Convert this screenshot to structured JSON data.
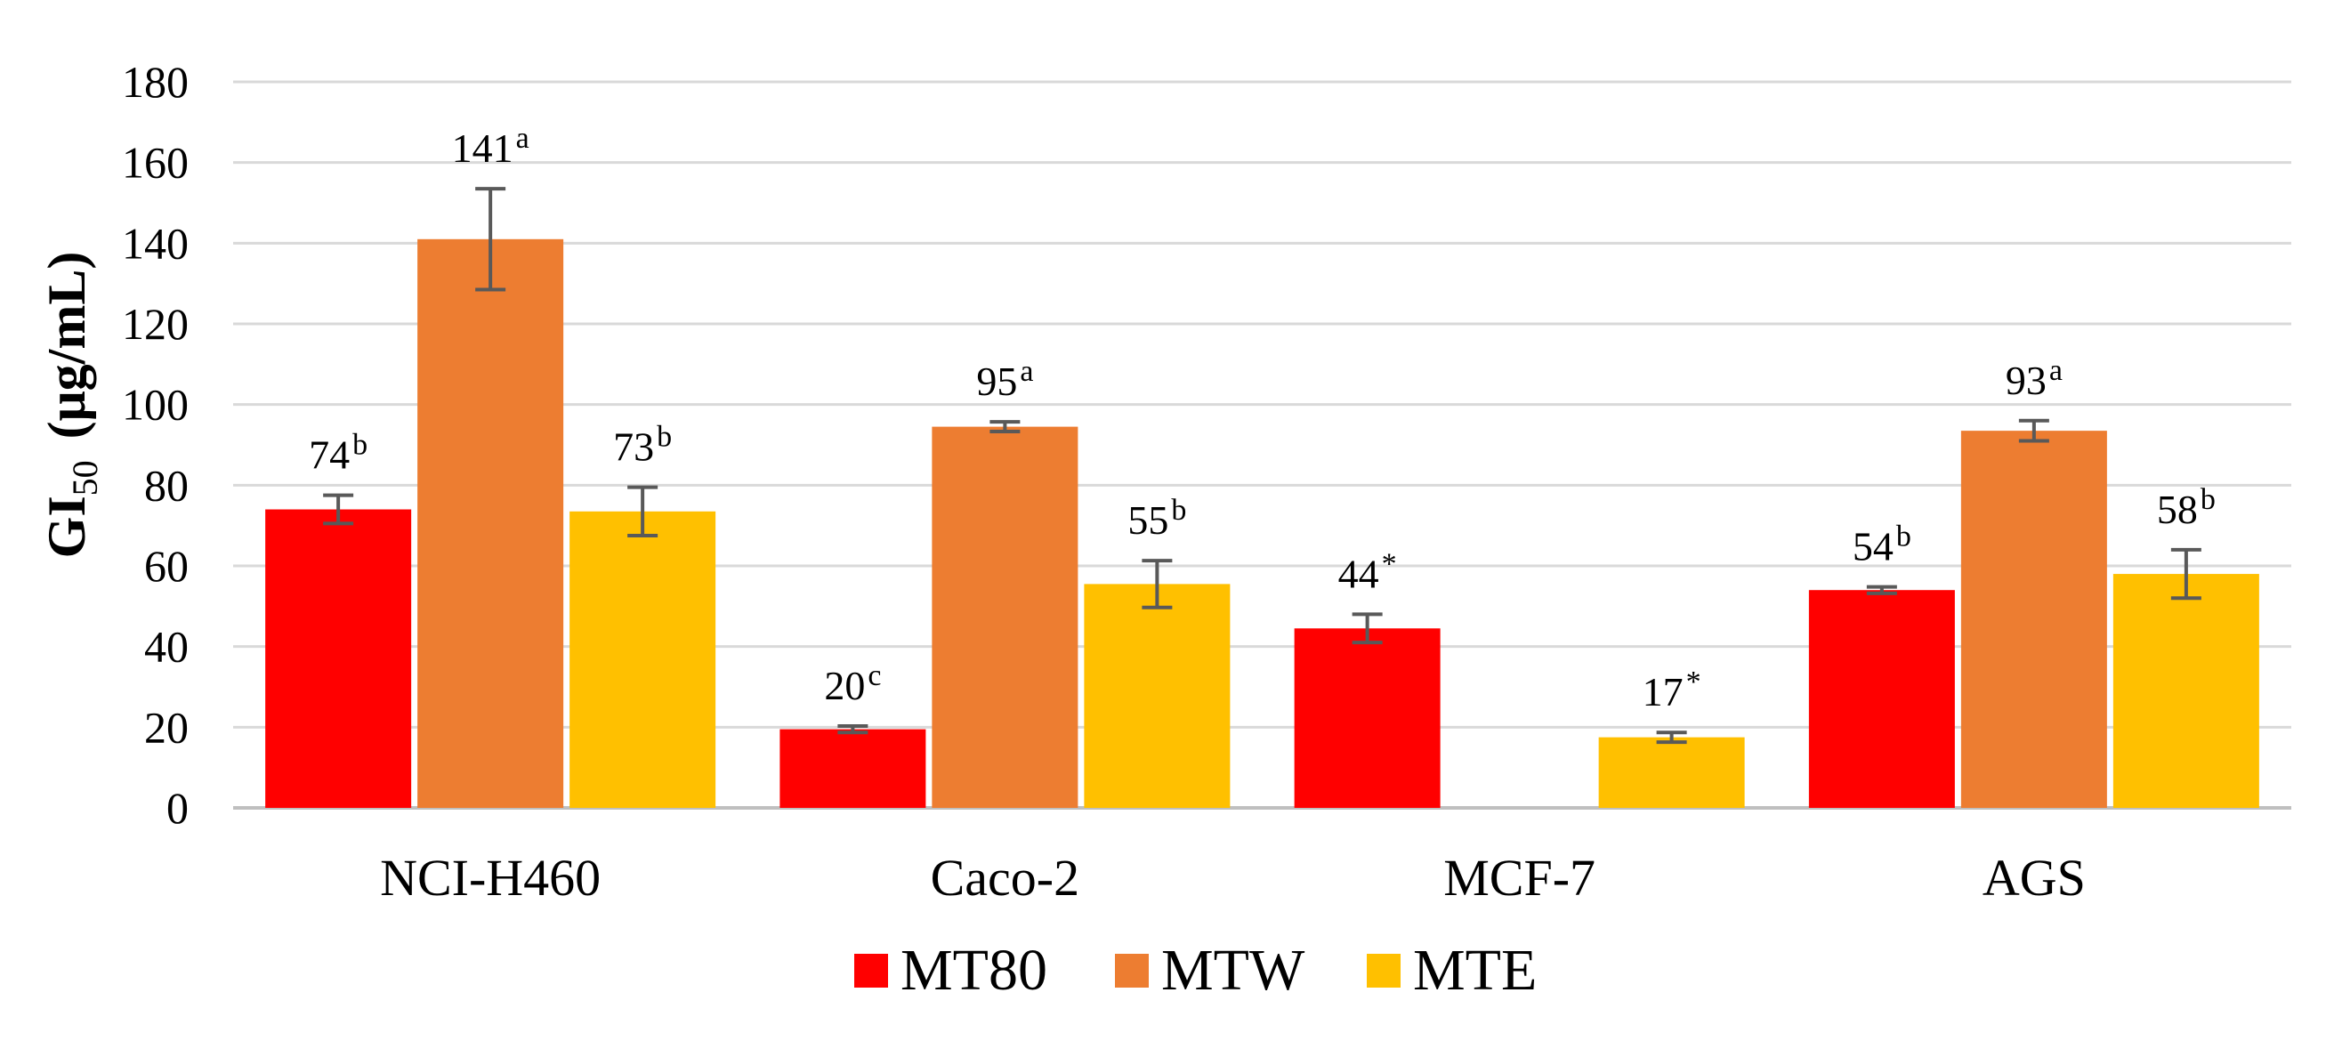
{
  "chart_data": {
    "type": "bar",
    "title": "",
    "ylabel": "GI50 (μg/mL)",
    "ylabel_main": "GI",
    "ylabel_sub": "50",
    "ylabel_unit": "(μg/mL)",
    "xlabel": "",
    "ylim": [
      0,
      180
    ],
    "yticks": [
      0,
      20,
      40,
      60,
      80,
      100,
      120,
      140,
      160,
      180
    ],
    "categories": [
      "NCI-H460",
      "Caco-2",
      "MCF-7",
      "AGS"
    ],
    "grid": true,
    "legend_position": "bottom-center",
    "series": [
      {
        "name": "MT80",
        "color": "#ff0000",
        "values": [
          74,
          19.5,
          44.5,
          54
        ],
        "errors": [
          3.5,
          0.8,
          3.5,
          0.8
        ],
        "labels": [
          "74",
          "20",
          "44",
          "54"
        ],
        "sup": [
          "b",
          "c",
          "*",
          "b"
        ]
      },
      {
        "name": "MTW",
        "color": "#ed7d31",
        "values": [
          141,
          94.5,
          null,
          93.5
        ],
        "errors": [
          12.5,
          1.2,
          null,
          2.5
        ],
        "labels": [
          "141",
          "95",
          "",
          "93"
        ],
        "sup": [
          "a",
          "a",
          "",
          "a"
        ]
      },
      {
        "name": "MTE",
        "color": "#ffc000",
        "values": [
          73.5,
          55.5,
          17.5,
          58
        ],
        "errors": [
          6,
          5.8,
          1.2,
          6
        ],
        "labels": [
          "73",
          "55",
          "17",
          "58"
        ],
        "sup": [
          "b",
          "b",
          "*",
          "b"
        ]
      }
    ]
  }
}
